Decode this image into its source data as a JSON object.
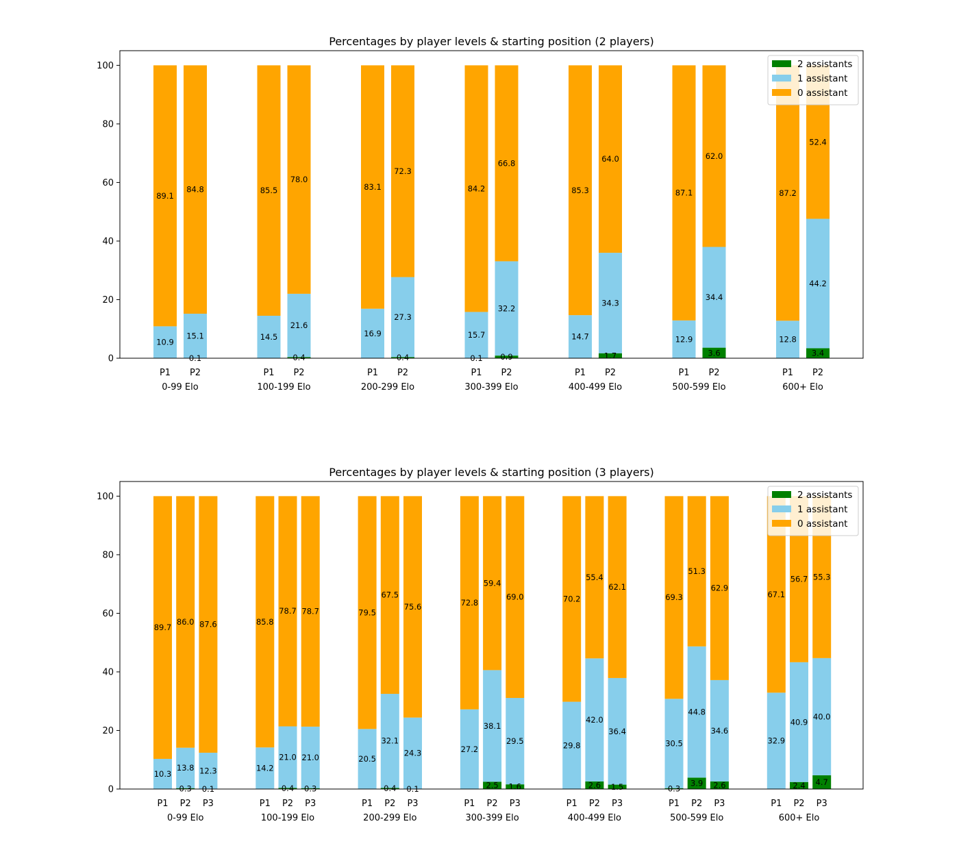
{
  "colors": {
    "zero": "#ffa500",
    "one": "#87ceeb",
    "two": "#008000"
  },
  "legend": [
    "2 assistants",
    "1 assistant",
    "0 assistant"
  ],
  "chart_data": [
    {
      "type": "bar",
      "stacked": true,
      "title": "Percentages by player levels & starting position (2 players)",
      "ylim": [
        0,
        105
      ],
      "yticks": [
        0,
        20,
        40,
        60,
        80,
        100
      ],
      "legend_position": "top-right",
      "positions": [
        "P1",
        "P2"
      ],
      "groups": [
        {
          "label": "0-99 Elo",
          "bars": [
            {
              "zero": "89.1",
              "one": "10.9",
              "two": null
            },
            {
              "zero": "84.8",
              "one": "15.1",
              "two": "0.1"
            }
          ]
        },
        {
          "label": "100-199 Elo",
          "bars": [
            {
              "zero": "85.5",
              "one": "14.5",
              "two": null
            },
            {
              "zero": "78.0",
              "one": "21.6",
              "two": "0.4"
            }
          ]
        },
        {
          "label": "200-299 Elo",
          "bars": [
            {
              "zero": "83.1",
              "one": "16.9",
              "two": null
            },
            {
              "zero": "72.3",
              "one": "27.3",
              "two": "0.4"
            }
          ]
        },
        {
          "label": "300-399 Elo",
          "bars": [
            {
              "zero": "84.2",
              "one": "15.7",
              "two": "0.1"
            },
            {
              "zero": "66.8",
              "one": "32.2",
              "two": "0.9"
            }
          ]
        },
        {
          "label": "400-499 Elo",
          "bars": [
            {
              "zero": "85.3",
              "one": "14.7",
              "two": null
            },
            {
              "zero": "64.0",
              "one": "34.3",
              "two": "1.7"
            }
          ]
        },
        {
          "label": "500-599 Elo",
          "bars": [
            {
              "zero": "87.1",
              "one": "12.9",
              "two": null
            },
            {
              "zero": "62.0",
              "one": "34.4",
              "two": "3.6"
            }
          ]
        },
        {
          "label": "600+ Elo",
          "bars": [
            {
              "zero": "87.2",
              "one": "12.8",
              "two": null
            },
            {
              "zero": "52.4",
              "one": "44.2",
              "two": "3.4"
            }
          ]
        }
      ]
    },
    {
      "type": "bar",
      "stacked": true,
      "title": "Percentages by player levels & starting position (3 players)",
      "ylim": [
        0,
        105
      ],
      "yticks": [
        0,
        20,
        40,
        60,
        80,
        100
      ],
      "legend_position": "top-right",
      "positions": [
        "P1",
        "P2",
        "P3"
      ],
      "groups": [
        {
          "label": "0-99 Elo",
          "bars": [
            {
              "zero": "89.7",
              "one": "10.3",
              "two": null
            },
            {
              "zero": "86.0",
              "one": "13.8",
              "two": "0.3"
            },
            {
              "zero": "87.6",
              "one": "12.3",
              "two": "0.1"
            }
          ]
        },
        {
          "label": "100-199 Elo",
          "bars": [
            {
              "zero": "85.8",
              "one": "14.2",
              "two": null
            },
            {
              "zero": "78.7",
              "one": "21.0",
              "two": "0.4"
            },
            {
              "zero": "78.7",
              "one": "21.0",
              "two": "0.3"
            }
          ]
        },
        {
          "label": "200-299 Elo",
          "bars": [
            {
              "zero": "79.5",
              "one": "20.5",
              "two": null
            },
            {
              "zero": "67.5",
              "one": "32.1",
              "two": "0.4"
            },
            {
              "zero": "75.6",
              "one": "24.3",
              "two": "0.1"
            }
          ]
        },
        {
          "label": "300-399 Elo",
          "bars": [
            {
              "zero": "72.8",
              "one": "27.2",
              "two": null
            },
            {
              "zero": "59.4",
              "one": "38.1",
              "two": "2.5"
            },
            {
              "zero": "69.0",
              "one": "29.5",
              "two": "1.6"
            }
          ]
        },
        {
          "label": "400-499 Elo",
          "bars": [
            {
              "zero": "70.2",
              "one": "29.8",
              "two": null
            },
            {
              "zero": "55.4",
              "one": "42.0",
              "two": "2.6"
            },
            {
              "zero": "62.1",
              "one": "36.4",
              "two": "1.5"
            }
          ]
        },
        {
          "label": "500-599 Elo",
          "bars": [
            {
              "zero": "69.3",
              "one": "30.5",
              "two": "0.3"
            },
            {
              "zero": "51.3",
              "one": "44.8",
              "two": "3.9"
            },
            {
              "zero": "62.9",
              "one": "34.6",
              "two": "2.6"
            }
          ]
        },
        {
          "label": "600+ Elo",
          "bars": [
            {
              "zero": "67.1",
              "one": "32.9",
              "two": null
            },
            {
              "zero": "56.7",
              "one": "40.9",
              "two": "2.4"
            },
            {
              "zero": "55.3",
              "one": "40.0",
              "two": "4.7"
            }
          ]
        }
      ]
    }
  ]
}
